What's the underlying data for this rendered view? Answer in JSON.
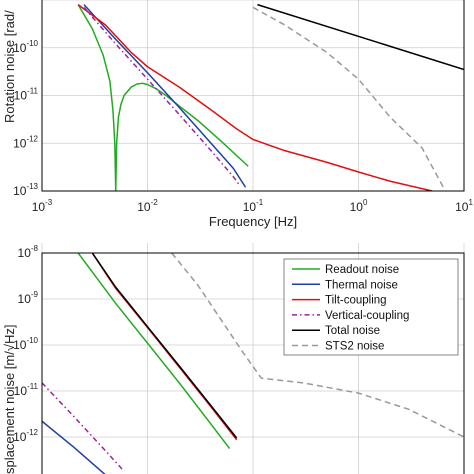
{
  "chart_data": [
    {
      "type": "line",
      "xlabel": "Frequency [Hz]",
      "ylabel": "Rotation noise [rad/",
      "x_scale": "log",
      "y_scale": "log",
      "xlim": [
        0.001,
        10
      ],
      "ylim": [
        1e-13,
        1e-09
      ],
      "grid": true,
      "x_ticks": [
        {
          "base": "10",
          "exp": "-3",
          "value": 0.001
        },
        {
          "base": "10",
          "exp": "-2",
          "value": 0.01
        },
        {
          "base": "10",
          "exp": "-1",
          "value": 0.1
        },
        {
          "base": "10",
          "exp": "0",
          "value": 1
        },
        {
          "base": "10",
          "exp": "1",
          "value": 10
        }
      ],
      "y_ticks": [
        {
          "base": "10",
          "exp": "-10",
          "value": 1e-10
        },
        {
          "base": "10",
          "exp": "-11",
          "value": 1e-11
        },
        {
          "base": "10",
          "exp": "-12",
          "value": 1e-12
        },
        {
          "base": "10",
          "exp": "-13",
          "value": 1e-13
        }
      ],
      "series": [
        {
          "color": "#22aa22",
          "dash": "solid",
          "x": [
            0.0022,
            0.003,
            0.0038,
            0.0044,
            0.0047,
            0.0049,
            0.005,
            0.0051,
            0.0053,
            0.0056,
            0.006,
            0.007,
            0.008,
            0.009,
            0.01,
            0.012,
            0.015,
            0.02,
            0.03,
            0.05,
            0.09
          ],
          "y": [
            8e-10,
            2.5e-10,
            7e-11,
            2e-11,
            5e-12,
            1e-12,
            1e-13,
            1e-12,
            3.5e-12,
            6.5e-12,
            1e-11,
            1.5e-11,
            1.75e-11,
            1.8e-11,
            1.7e-11,
            1.4e-11,
            1e-11,
            6e-12,
            3e-12,
            1.1e-12,
            3.3e-13
          ]
        },
        {
          "color": "#1f3fa8",
          "dash": "solid",
          "x": [
            0.0025,
            0.005,
            0.01,
            0.02,
            0.04,
            0.065,
            0.085
          ],
          "y": [
            8e-10,
            1.5e-10,
            3e-11,
            5.6e-12,
            1e-12,
            3e-13,
            1.2e-13
          ]
        },
        {
          "color": "#dd1111",
          "dash": "solid",
          "x": [
            0.0022,
            0.004,
            0.007,
            0.01,
            0.02,
            0.04,
            0.07,
            0.1,
            0.2,
            0.5,
            1,
            2,
            5
          ],
          "y": [
            8e-10,
            3e-10,
            8e-11,
            4e-11,
            1.5e-11,
            5e-12,
            2e-12,
            1.2e-12,
            7e-13,
            4e-13,
            2.5e-13,
            1.6e-13,
            1e-13
          ]
        },
        {
          "color": "#a020a0",
          "dash": "dashdot",
          "x": [
            0.0025,
            0.005,
            0.01,
            0.02,
            0.04,
            0.065,
            0.075
          ],
          "y": [
            7e-10,
            1.2e-10,
            2.2e-11,
            4e-12,
            7e-13,
            2e-13,
            1.3e-13
          ]
        },
        {
          "color": "#000000",
          "dash": "solid",
          "x": [
            0.11,
            10
          ],
          "y": [
            8e-10,
            3.5e-11
          ]
        },
        {
          "color": "#999999",
          "dash": "dashed",
          "x": [
            0.1,
            0.2,
            0.5,
            1,
            2,
            4,
            6.5
          ],
          "y": [
            7e-10,
            3e-10,
            8e-11,
            2.2e-11,
            3.5e-12,
            8e-13,
            1.1e-13
          ]
        }
      ]
    },
    {
      "type": "line",
      "ylabel": "splacement noise [m/√Hz]",
      "x_scale": "log",
      "y_scale": "log",
      "xlim": [
        0.001,
        10
      ],
      "ylim": [
        1e-13,
        1e-08
      ],
      "grid": true,
      "legend_position": "top-right",
      "y_ticks": [
        {
          "base": "10",
          "exp": "-8",
          "value": 1e-08
        },
        {
          "base": "10",
          "exp": "-9",
          "value": 1e-09
        },
        {
          "base": "10",
          "exp": "-10",
          "value": 1e-10
        },
        {
          "base": "10",
          "exp": "-11",
          "value": 1e-11
        },
        {
          "base": "10",
          "exp": "-12",
          "value": 1e-12
        }
      ],
      "series": [
        {
          "name": "Readout noise",
          "color": "#22aa22",
          "dash": "solid",
          "x": [
            0.0022,
            0.005,
            0.01,
            0.02,
            0.04,
            0.06
          ],
          "y": [
            1e-08,
            8e-10,
            1.1e-10,
            1.5e-11,
            1.9e-12,
            5.6e-13
          ]
        },
        {
          "name": "Thermal noise",
          "color": "#1f3fa8",
          "dash": "solid",
          "x": [
            0.001,
            0.002,
            0.004,
            0.006
          ],
          "y": [
            2.2e-12,
            6e-13,
            1.5e-13,
            7e-14
          ]
        },
        {
          "name": "Tilt-coupling",
          "color": "#dd1111",
          "dash": "solid",
          "x": [
            0.003,
            0.005,
            0.01,
            0.02,
            0.04,
            0.07
          ],
          "y": [
            1e-08,
            1.7e-09,
            2.4e-10,
            3.3e-11,
            4.5e-12,
            8.7e-13
          ]
        },
        {
          "name": "Vertical-coupling",
          "color": "#a020a0",
          "dash": "dashdot",
          "x": [
            0.001,
            0.002,
            0.004,
            0.006
          ],
          "y": [
            1.5e-11,
            2.8e-12,
            5e-13,
            1.8e-13
          ]
        },
        {
          "name": "Total noise",
          "color": "#000000",
          "dash": "solid",
          "x": [
            0.003,
            0.005,
            0.01,
            0.02,
            0.04,
            0.07
          ],
          "y": [
            1e-08,
            1.8e-09,
            2.5e-10,
            3.5e-11,
            4.8e-12,
            9.5e-13
          ]
        },
        {
          "name": "STS2 noise",
          "color": "#999999",
          "dash": "dashed",
          "x": [
            0.017,
            0.03,
            0.05,
            0.08,
            0.12,
            0.3,
            1,
            3,
            10
          ],
          "y": [
            1e-08,
            2e-09,
            3.5e-10,
            7e-11,
            1.9e-11,
            1.5e-11,
            9e-12,
            4e-12,
            1e-12
          ]
        }
      ]
    }
  ]
}
